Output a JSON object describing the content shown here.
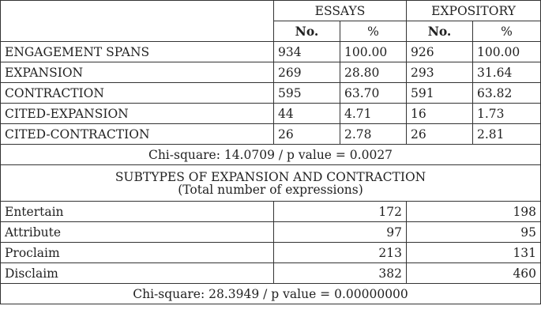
{
  "columns": {
    "group_essays": "ESSAYS",
    "group_expository": "EXPOSITORY",
    "no_label": "No.",
    "pct_label": "%"
  },
  "rows": [
    {
      "label": "ENGAGEMENT SPANS",
      "essays_no": "934",
      "essays_pct": "100.00",
      "expository_no": "926",
      "expository_pct": "100.00"
    },
    {
      "label": "EXPANSION",
      "essays_no": "269",
      "essays_pct": "28.80",
      "expository_no": "293",
      "expository_pct": "31.64"
    },
    {
      "label": "CONTRACTION",
      "essays_no": "595",
      "essays_pct": "63.70",
      "expository_no": "591",
      "expository_pct": "63.82"
    },
    {
      "label": "CITED-EXPANSION",
      "essays_no": "44",
      "essays_pct": "4.71",
      "expository_no": "16",
      "expository_pct": "1.73"
    },
    {
      "label": "CITED-CONTRACTION",
      "essays_no": "26",
      "essays_pct": "2.78",
      "expository_no": "26",
      "expository_pct": "2.81"
    }
  ],
  "chi_square_1": "Chi-square: 14.0709 / p value = 0.0027",
  "subtypes": {
    "title": "SUBTYPES OF EXPANSION AND CONTRACTION",
    "subtitle": "(Total number of expressions)",
    "rows": [
      {
        "label": "Entertain",
        "essays": "172",
        "expository": "198"
      },
      {
        "label": "Attribute",
        "essays": "97",
        "expository": "95"
      },
      {
        "label": "Proclaim",
        "essays": "213",
        "expository": "131"
      },
      {
        "label": "Disclaim",
        "essays": "382",
        "expository": "460"
      }
    ]
  },
  "chi_square_2": "Chi-square: 28.3949 / p value = 0.00000000"
}
